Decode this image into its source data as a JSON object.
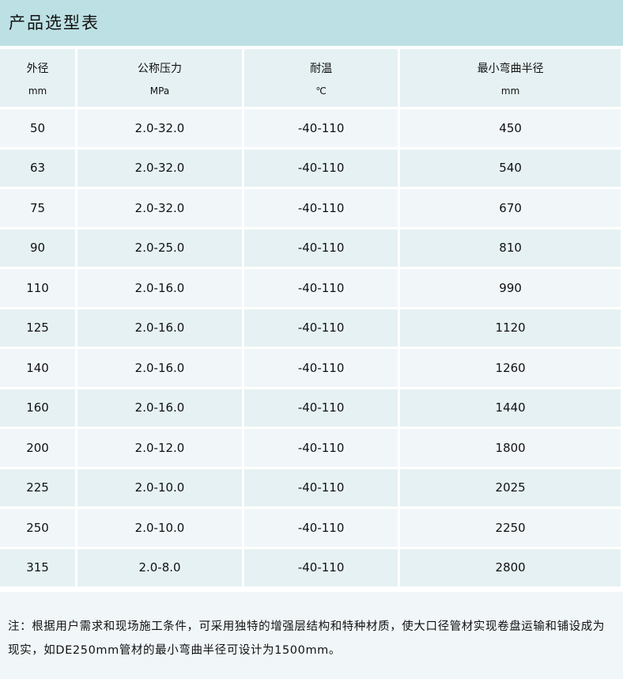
{
  "title": "产品选型表",
  "headers": [
    {
      "label": "外径",
      "unit": "mm"
    },
    {
      "label": "公称压力",
      "unit": "MPa"
    },
    {
      "label": "耐温",
      "unit": "℃"
    },
    {
      "label": "最小弯曲半径",
      "unit": "mm"
    }
  ],
  "rows": [
    [
      "50",
      "2.0-32.0",
      "-40-110",
      "450"
    ],
    [
      "63",
      "2.0-32.0",
      "-40-110",
      "540"
    ],
    [
      "75",
      "2.0-32.0",
      "-40-110",
      "670"
    ],
    [
      "90",
      "2.0-25.0",
      "-40-110",
      "810"
    ],
    [
      "110",
      "2.0-16.0",
      "-40-110",
      "990"
    ],
    [
      "125",
      "2.0-16.0",
      "-40-110",
      "1120"
    ],
    [
      "140",
      "2.0-16.0",
      "-40-110",
      "1260"
    ],
    [
      "160",
      "2.0-16.0",
      "-40-110",
      "1440"
    ],
    [
      "200",
      "2.0-12.0",
      "-40-110",
      "1800"
    ],
    [
      "225",
      "2.0-10.0",
      "-40-110",
      "2025"
    ],
    [
      "250",
      "2.0-10.0",
      "-40-110",
      "2250"
    ],
    [
      "315",
      "2.0-8.0",
      "-40-110",
      "2800"
    ]
  ],
  "note": "注：根据用户需求和现场施工条件，可采用独特的增强层结构和特种材质，使大口径管材实现卷盘运输和铺设成为现实，如DE250mm管材的最小弯曲半径可设计为1500mm。"
}
